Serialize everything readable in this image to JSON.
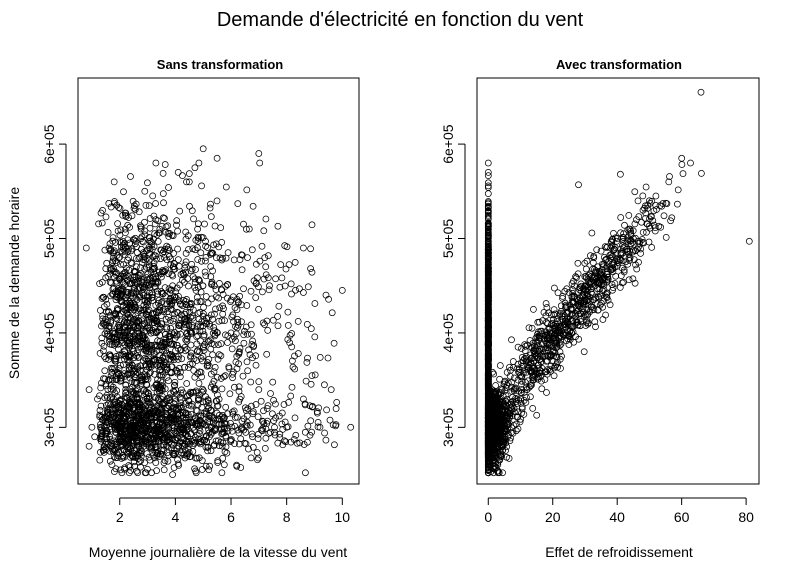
{
  "figure": {
    "title": "Demande d'électricité en fonction du vent",
    "ylabel": "Somme de la demande horaire"
  },
  "chart_data": [
    {
      "type": "scatter",
      "title": "Sans transformation",
      "xlabel": "Moyenne journalière de la vitesse du vent",
      "ylabel": "Somme de la demande horaire",
      "xlim": [
        0.5,
        10.6
      ],
      "ylim": [
        240000,
        670000
      ],
      "xticks": [
        2,
        4,
        6,
        8,
        10
      ],
      "yticks": [
        300000,
        400000,
        500000,
        600000
      ],
      "xtick_labels": [
        "2",
        "4",
        "6",
        "8",
        "10"
      ],
      "ytick_labels": [
        "3e+05",
        "4e+05",
        "5e+05",
        "6e+05"
      ],
      "marker": "open-circle",
      "grid": false,
      "n_points": 2600,
      "x": [
        0.8,
        0.9,
        1.0,
        1.2,
        1.4,
        1.6,
        0.9,
        1.1,
        1.3,
        1.8,
        2.2,
        2.6,
        3.0,
        3.3,
        3.6,
        3.9,
        4.2,
        4.5,
        4.8,
        5.1,
        5.4,
        5.7,
        6.0,
        6.3,
        6.6,
        7.0,
        7.3,
        7.6,
        8.0,
        8.3,
        8.6,
        8.9,
        9.2,
        9.6,
        10.0,
        10.3,
        3.3,
        4.1,
        4.4,
        5.0,
        2.9,
        3.9,
        5.2,
        6.2,
        7.0,
        3.6,
        4.7,
        5.5,
        8.6
      ],
      "y": [
        490000,
        340000,
        300000,
        330000,
        410000,
        350000,
        280000,
        290000,
        300000,
        560000,
        510000,
        470000,
        430000,
        520000,
        480000,
        450000,
        430000,
        560000,
        510000,
        480000,
        450000,
        420000,
        400000,
        380000,
        360000,
        340000,
        320000,
        310000,
        300000,
        310000,
        330000,
        295000,
        300000,
        340000,
        445000,
        300000,
        580000,
        570000,
        560000,
        595000,
        550000,
        250000,
        255000,
        260000,
        590000,
        255000,
        575000,
        585000,
        490000
      ]
    },
    {
      "type": "scatter",
      "title": "Avec transformation",
      "xlabel": "Effet de refroidissement",
      "ylabel": "",
      "xlim": [
        -3.5,
        84
      ],
      "ylim": [
        240000,
        670000
      ],
      "xticks": [
        0,
        20,
        40,
        60,
        80
      ],
      "yticks": [
        300000,
        400000,
        500000,
        600000
      ],
      "xtick_labels": [
        "0",
        "20",
        "40",
        "60",
        "80"
      ],
      "ytick_labels": [
        "3e+05",
        "4e+05",
        "5e+05",
        "6e+05"
      ],
      "marker": "open-circle",
      "grid": false,
      "n_points": 2600,
      "x": [
        0,
        0,
        0,
        0,
        0,
        2,
        4,
        6,
        8,
        10,
        12,
        14,
        16,
        18,
        20,
        22,
        24,
        26,
        28,
        30,
        32,
        34,
        36,
        38,
        40,
        42,
        44,
        46,
        48,
        50,
        52,
        56,
        60,
        66,
        81,
        28,
        41
      ],
      "y": [
        570000,
        500000,
        400000,
        300000,
        260000,
        290000,
        300000,
        310000,
        320000,
        330000,
        340000,
        350000,
        360000,
        370000,
        380000,
        395000,
        410000,
        420000,
        435000,
        450000,
        460000,
        470000,
        480000,
        490000,
        500000,
        505000,
        510000,
        520000,
        530000,
        540000,
        545000,
        560000,
        585000,
        655000,
        497000,
        557000,
        568000
      ]
    }
  ]
}
